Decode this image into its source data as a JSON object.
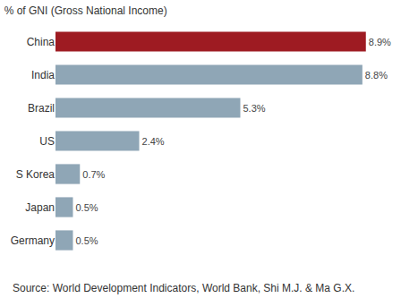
{
  "chart_data": {
    "type": "bar",
    "orientation": "horizontal",
    "title": "% of GNI (Gross National Income)",
    "categories": [
      "China",
      "India",
      "Brazil",
      "US",
      "S Korea",
      "Japan",
      "Germany"
    ],
    "values": [
      8.9,
      8.8,
      5.3,
      2.4,
      0.7,
      0.5,
      0.5
    ],
    "value_labels": [
      "8.9%",
      "8.8%",
      "5.3%",
      "2.4%",
      "0.7%",
      "0.5%",
      "0.5%"
    ],
    "colors": [
      "#9e1b22",
      "#8fa6b6",
      "#8fa6b6",
      "#8fa6b6",
      "#8fa6b6",
      "#8fa6b6",
      "#8fa6b6"
    ],
    "data_labels": true,
    "tick_labels": "y",
    "grid": false,
    "annotations": [
      "Source: World Development Indicators, World Bank, Shi M.J. & Ma G.X."
    ]
  }
}
